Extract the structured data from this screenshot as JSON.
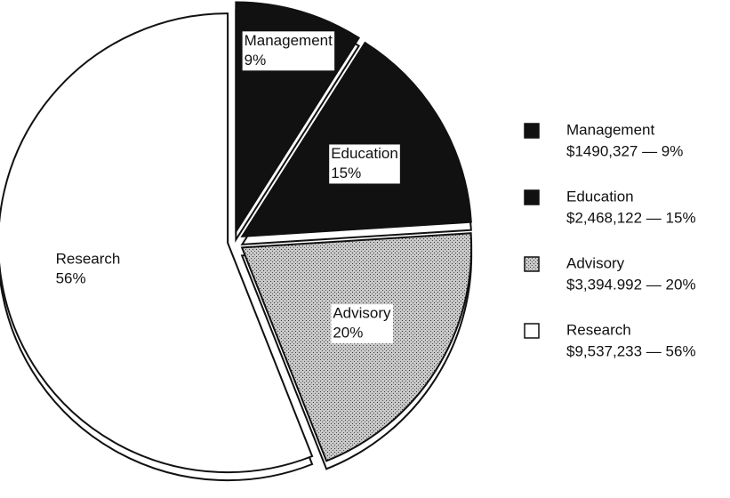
{
  "chart_data": {
    "type": "pie",
    "categories": [
      "Management",
      "Education",
      "Advisory",
      "Research"
    ],
    "values": [
      9,
      15,
      20,
      56
    ],
    "value_labels": [
      "9%",
      "15%",
      "20%",
      "56%"
    ],
    "legend_details": [
      "$1490,327 — 9%",
      "$2,468,122 — 15%",
      "$3,394.992 — 20%",
      "$9,537,233 — 56%"
    ],
    "colors": [
      "#111111",
      "#111111",
      "#b8b8b8",
      "#ffffff"
    ],
    "legend": "right"
  }
}
